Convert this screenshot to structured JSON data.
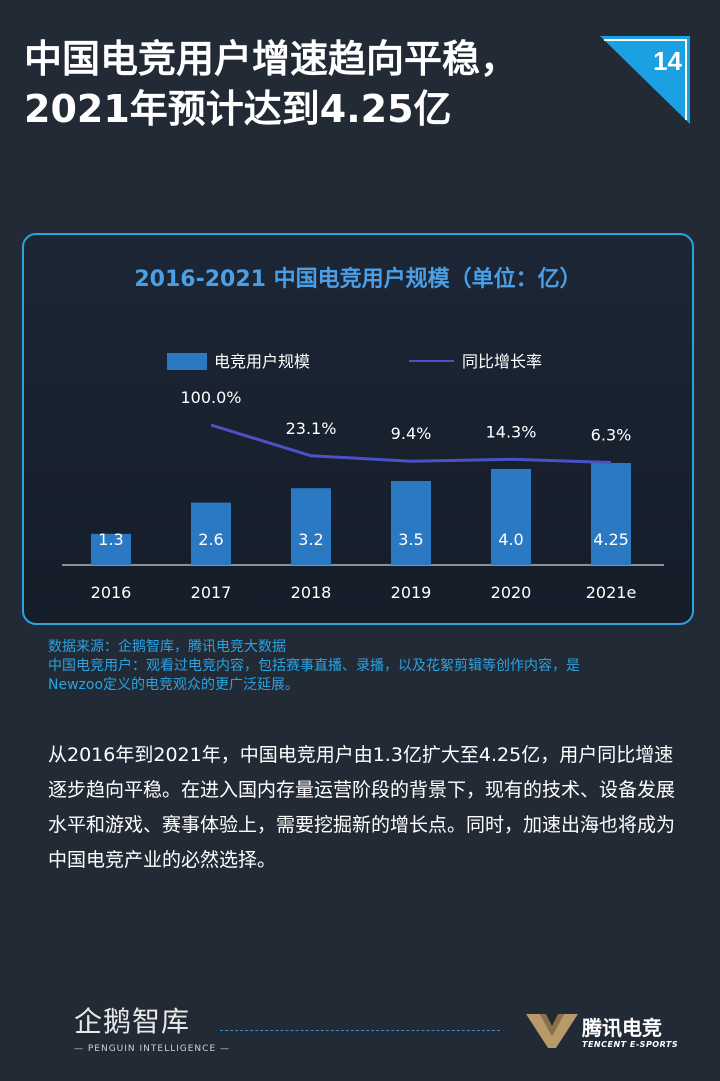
{
  "page": {
    "title_line1": "中国电竞用户增速趋向平稳，",
    "title_line2": "2021年预计达到4.25亿",
    "page_number": "14",
    "accent_color": "#1ba0e2"
  },
  "chart_data": {
    "type": "bar",
    "title": "2016-2021 中国电竞用户规模（单位：亿）",
    "categories": [
      "2016",
      "2017",
      "2018",
      "2019",
      "2020",
      "2021e"
    ],
    "series": [
      {
        "name": "电竞用户规模",
        "kind": "bar",
        "values": [
          1.3,
          2.6,
          3.2,
          3.5,
          4.0,
          4.25
        ],
        "labels": [
          "1.3",
          "2.6",
          "3.2",
          "3.5",
          "4.0",
          "4.25"
        ],
        "color": "#2b79c2"
      },
      {
        "name": "同比增长率",
        "kind": "line",
        "values": [
          null,
          100.0,
          23.1,
          9.4,
          14.3,
          6.3
        ],
        "labels": [
          "",
          "100.0%",
          "23.1%",
          "9.4%",
          "14.3%",
          "6.3%"
        ],
        "color": "#4b52c8"
      }
    ],
    "legend_position": "top",
    "xlabel": "",
    "ylabel": ""
  },
  "source": {
    "line1": "数据来源：企鹅智库，腾讯电竞大数据",
    "line2": "中国电竞用户：观看过电竞内容，包括赛事直播、录播，以及花絮剪辑等创作内容，是",
    "line3": "Newzoo定义的电竞观众的更广泛延展。"
  },
  "body": {
    "paragraph": "从2016年到2021年，中国电竞用户由1.3亿扩大至4.25亿，用户同比增速逐步趋向平稳。在进入国内存量运营阶段的背景下，现有的技术、设备发展水平和游戏、赛事体验上，需要挖掘新的增长点。同时，加速出海也将成为中国电竞产业的必然选择。"
  },
  "footer": {
    "left_logo_name": "企鹅智库",
    "left_logo_sub": "— PENGUIN INTELLIGENCE —",
    "right_logo_name": "腾讯电竞",
    "right_logo_sub": "TENCENT E-SPORTS"
  }
}
